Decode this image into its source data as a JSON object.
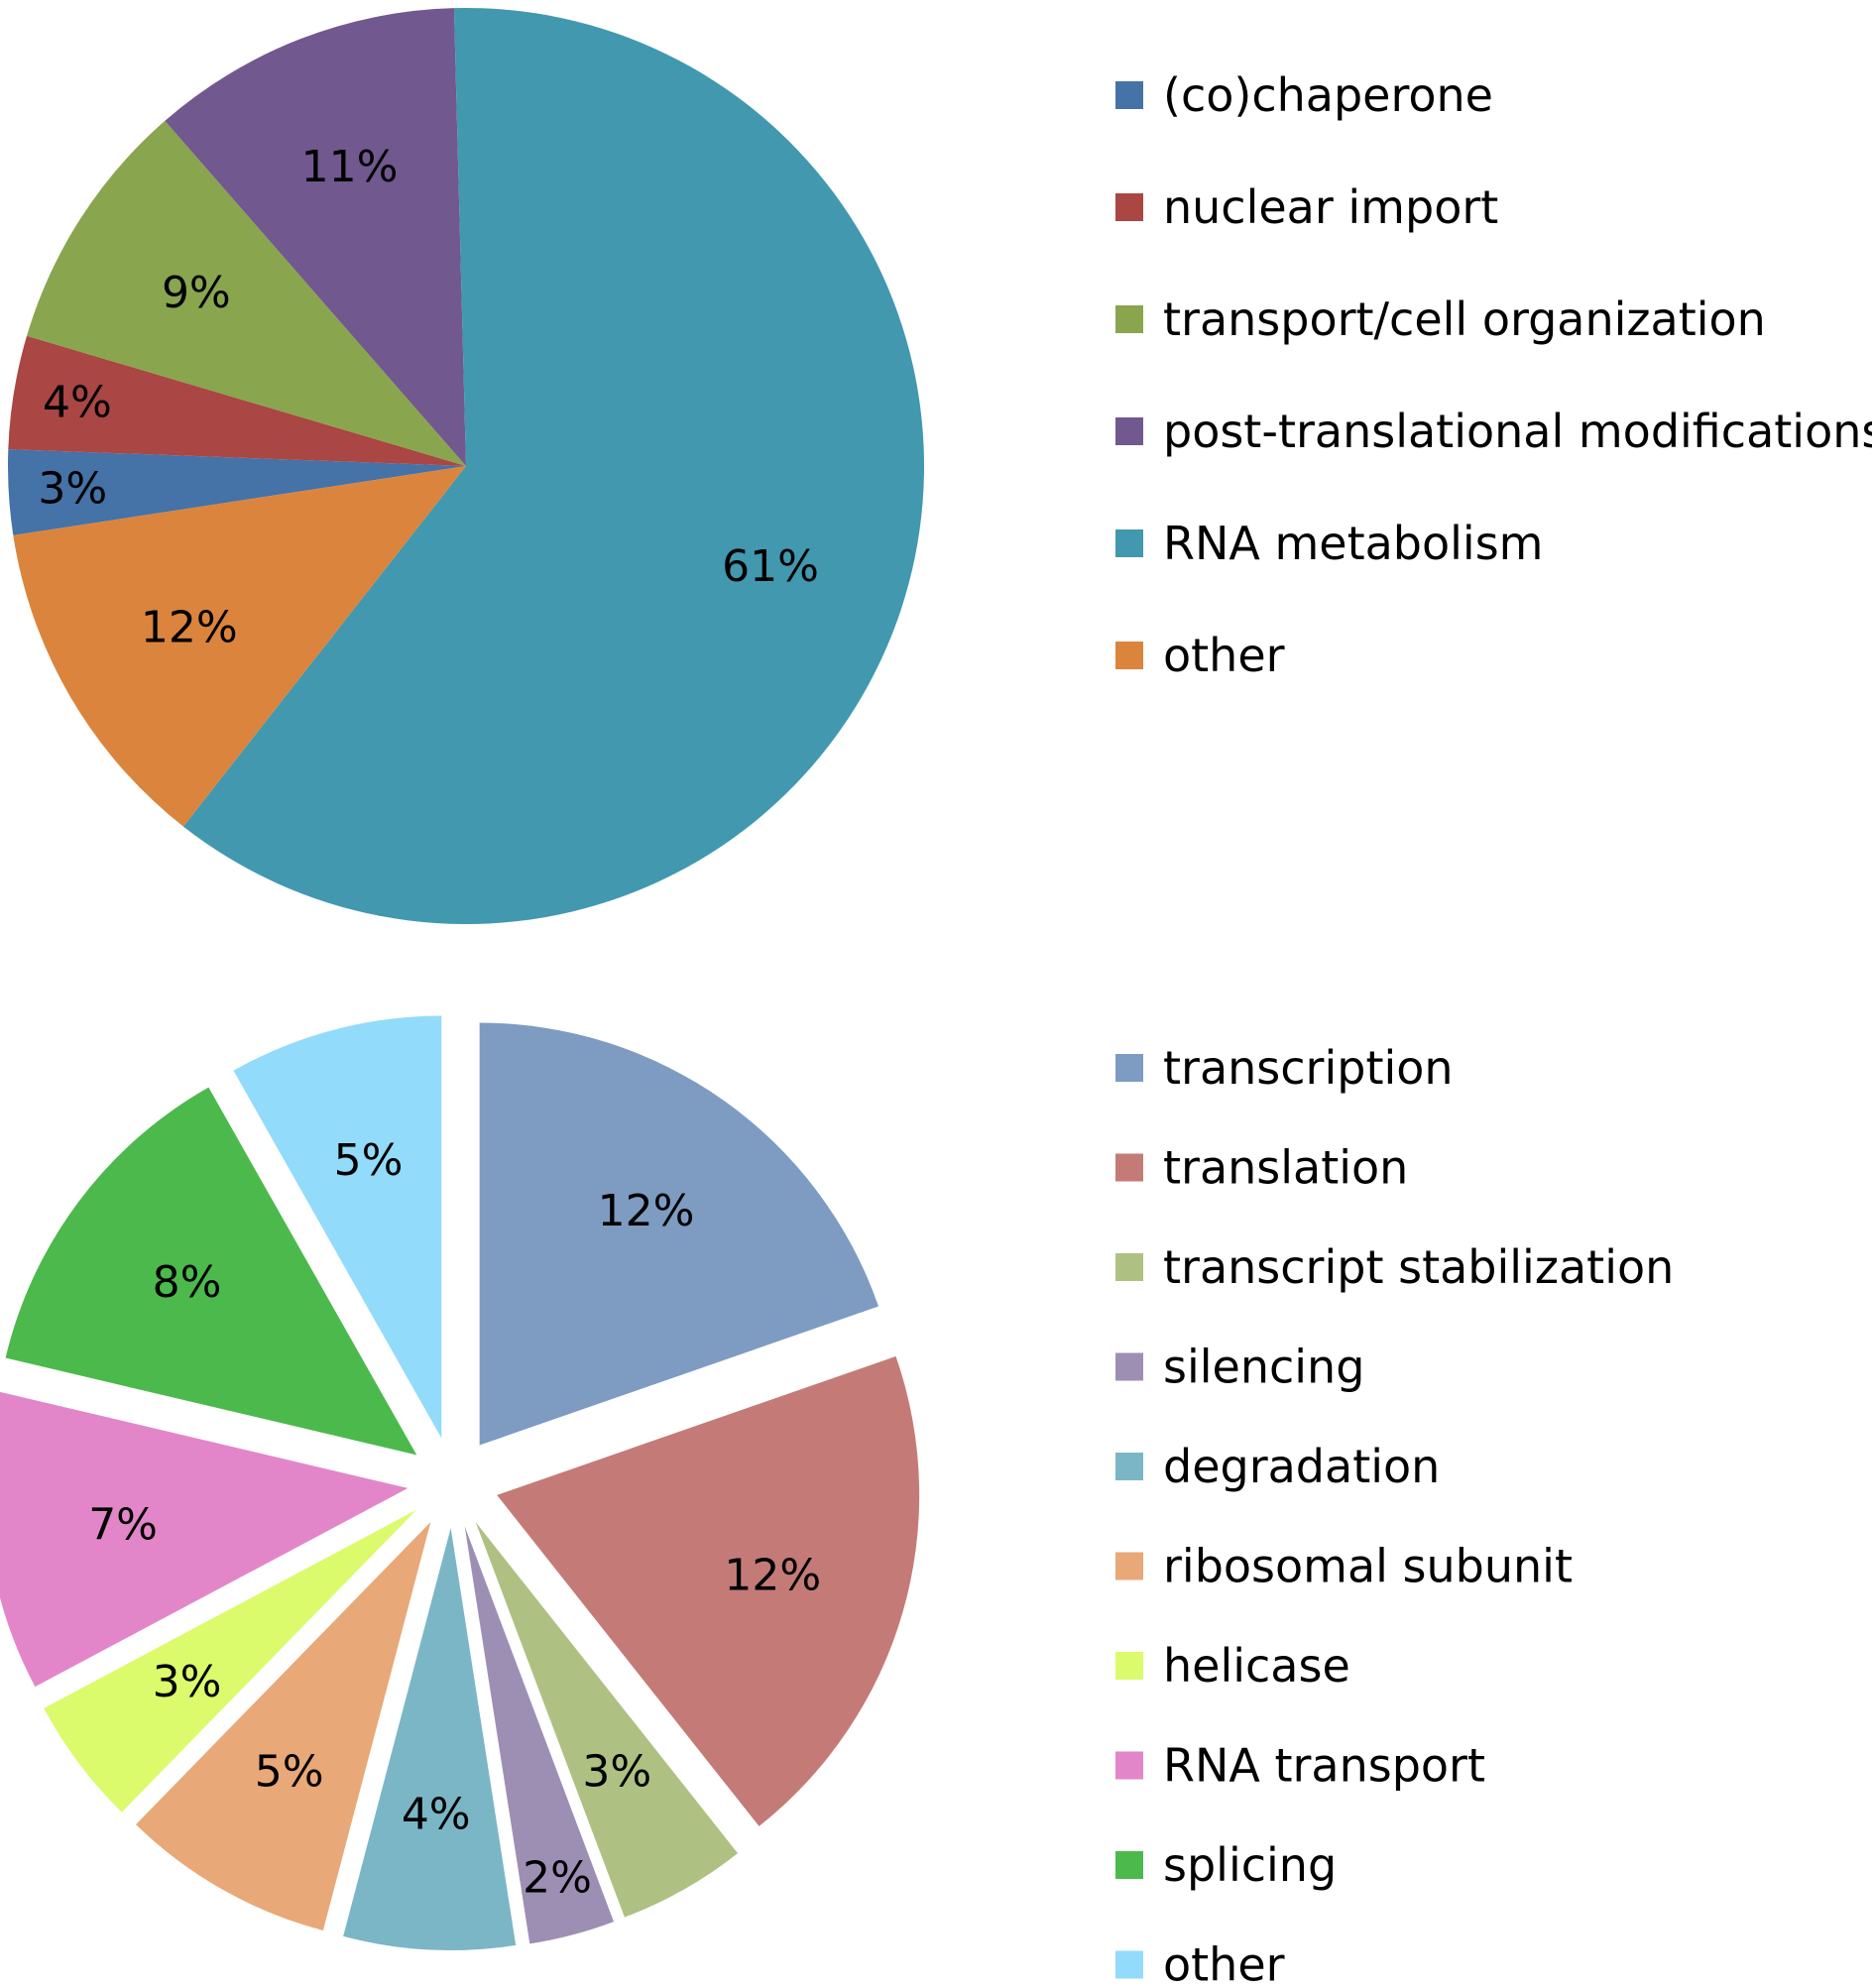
{
  "chart_data": [
    {
      "type": "pie",
      "title": "",
      "labels": [
        "(co)chaperone",
        "nuclear import",
        "transport/cell organization",
        "post-translational modifications",
        "RNA metabolism",
        "other"
      ],
      "values": [
        3,
        4,
        9,
        11,
        61,
        12
      ],
      "data_labels": [
        "3%",
        "4%",
        "9%",
        "11%",
        "61%",
        "12%"
      ],
      "colors": [
        "#4572a7",
        "#aa4643",
        "#89a54e",
        "#71588f",
        "#4198af",
        "#db843d"
      ],
      "legend_position": "right",
      "exploded": false
    },
    {
      "type": "pie",
      "title": "",
      "labels": [
        "transcription",
        "translation",
        "transcript stabilization",
        "silencing",
        "degradation",
        "ribosomal subunit",
        "helicase",
        "RNA transport",
        "splicing",
        "other"
      ],
      "values": [
        12,
        12,
        3,
        2,
        4,
        5,
        3,
        7,
        8,
        5
      ],
      "data_labels": [
        "12%",
        "12%",
        "3%",
        "2%",
        "4%",
        "5%",
        "3%",
        "7%",
        "8%",
        "5%"
      ],
      "colors": [
        "#7e9bc2",
        "#c47b78",
        "#aec183",
        "#9d8fb4",
        "#7bb6c6",
        "#e8a877",
        "#dbfb6d",
        "#e286c9",
        "#4cb94c",
        "#93dbfa"
      ],
      "legend_position": "right",
      "exploded": true
    }
  ]
}
